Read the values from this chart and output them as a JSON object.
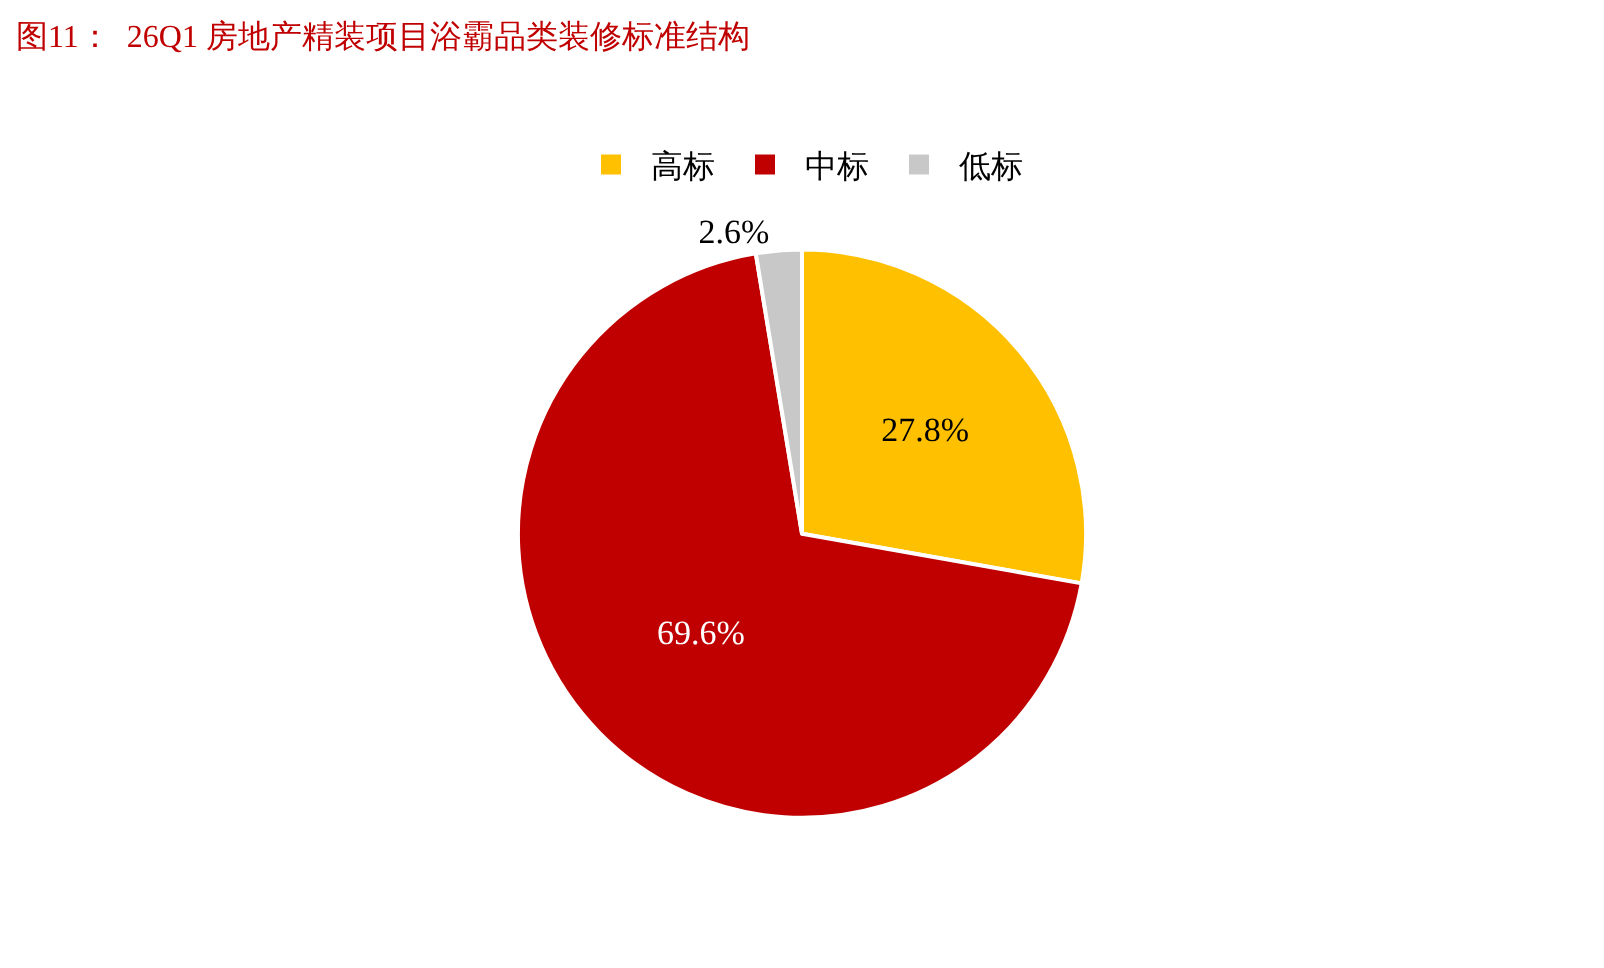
{
  "chart_data": {
    "type": "pie",
    "title": "图11：  26Q1 房地产精装项目浴霸品类装修标准结构",
    "categories": [
      "高标",
      "中标",
      "低标"
    ],
    "values": [
      27.8,
      69.6,
      2.6
    ],
    "colors": [
      "#ffc000",
      "#c00000",
      "#c8c8c8"
    ],
    "value_labels": [
      "27.8%",
      "69.6%",
      "2.6%"
    ],
    "legend": "top"
  }
}
